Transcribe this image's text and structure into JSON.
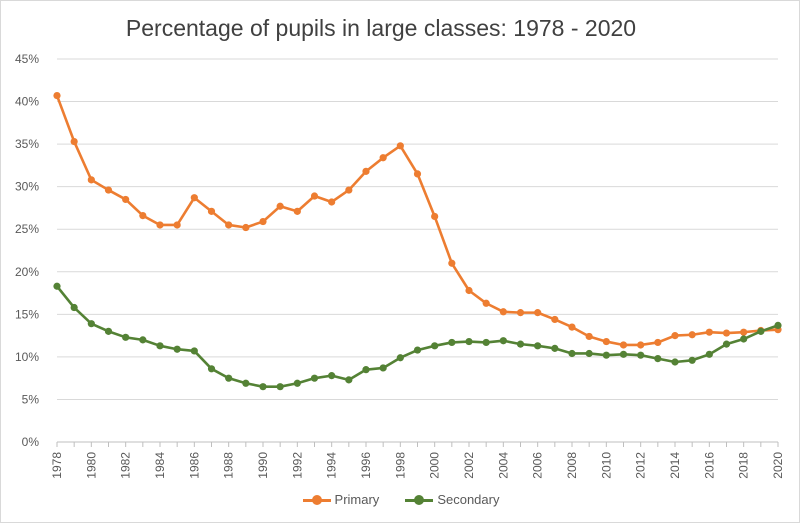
{
  "chart_data": {
    "type": "line",
    "title": "Percentage of pupils in large classes: 1978 - 2020",
    "xlabel": "",
    "ylabel": "",
    "x": [
      1978,
      1979,
      1980,
      1981,
      1982,
      1983,
      1984,
      1985,
      1986,
      1987,
      1988,
      1989,
      1990,
      1991,
      1992,
      1993,
      1994,
      1995,
      1996,
      1997,
      1998,
      1999,
      2000,
      2001,
      2002,
      2003,
      2004,
      2005,
      2006,
      2007,
      2008,
      2009,
      2010,
      2011,
      2012,
      2013,
      2014,
      2015,
      2016,
      2017,
      2018,
      2019,
      2020
    ],
    "x_tick_labels": [
      "1978",
      "1980",
      "1982",
      "1984",
      "1986",
      "1988",
      "1990",
      "1992",
      "1994",
      "1996",
      "1998",
      "2000",
      "2002",
      "2004",
      "2006",
      "2008",
      "2010",
      "2012",
      "2014",
      "2016",
      "2018",
      "2020"
    ],
    "y_tick_labels": [
      "0%",
      "5%",
      "10%",
      "15%",
      "20%",
      "25%",
      "30%",
      "35%",
      "40%",
      "45%"
    ],
    "ylim": [
      0,
      45
    ],
    "grid": true,
    "legend_position": "bottom",
    "series": [
      {
        "name": "Primary",
        "color": "#ED7D31",
        "values": [
          40.7,
          35.3,
          30.8,
          29.6,
          28.5,
          26.6,
          25.5,
          25.5,
          28.7,
          27.1,
          25.5,
          25.2,
          25.9,
          27.7,
          27.1,
          28.9,
          28.2,
          29.6,
          31.8,
          33.4,
          34.8,
          31.5,
          26.5,
          21.0,
          17.8,
          16.3,
          15.3,
          15.2,
          15.2,
          14.4,
          13.5,
          12.4,
          11.8,
          11.4,
          11.4,
          11.7,
          12.5,
          12.6,
          12.9,
          12.8,
          12.9,
          13.1,
          13.2
        ]
      },
      {
        "name": "Secondary",
        "color": "#548235",
        "values": [
          18.3,
          15.8,
          13.9,
          13.0,
          12.3,
          12.0,
          11.3,
          10.9,
          10.7,
          8.6,
          7.5,
          6.9,
          6.5,
          6.5,
          6.9,
          7.5,
          7.8,
          7.3,
          8.5,
          8.7,
          9.9,
          10.8,
          11.3,
          11.7,
          11.8,
          11.7,
          11.9,
          11.5,
          11.3,
          11.0,
          10.4,
          10.4,
          10.2,
          10.3,
          10.2,
          9.8,
          9.4,
          9.6,
          10.3,
          11.5,
          12.1,
          13.0,
          13.7
        ]
      }
    ]
  }
}
